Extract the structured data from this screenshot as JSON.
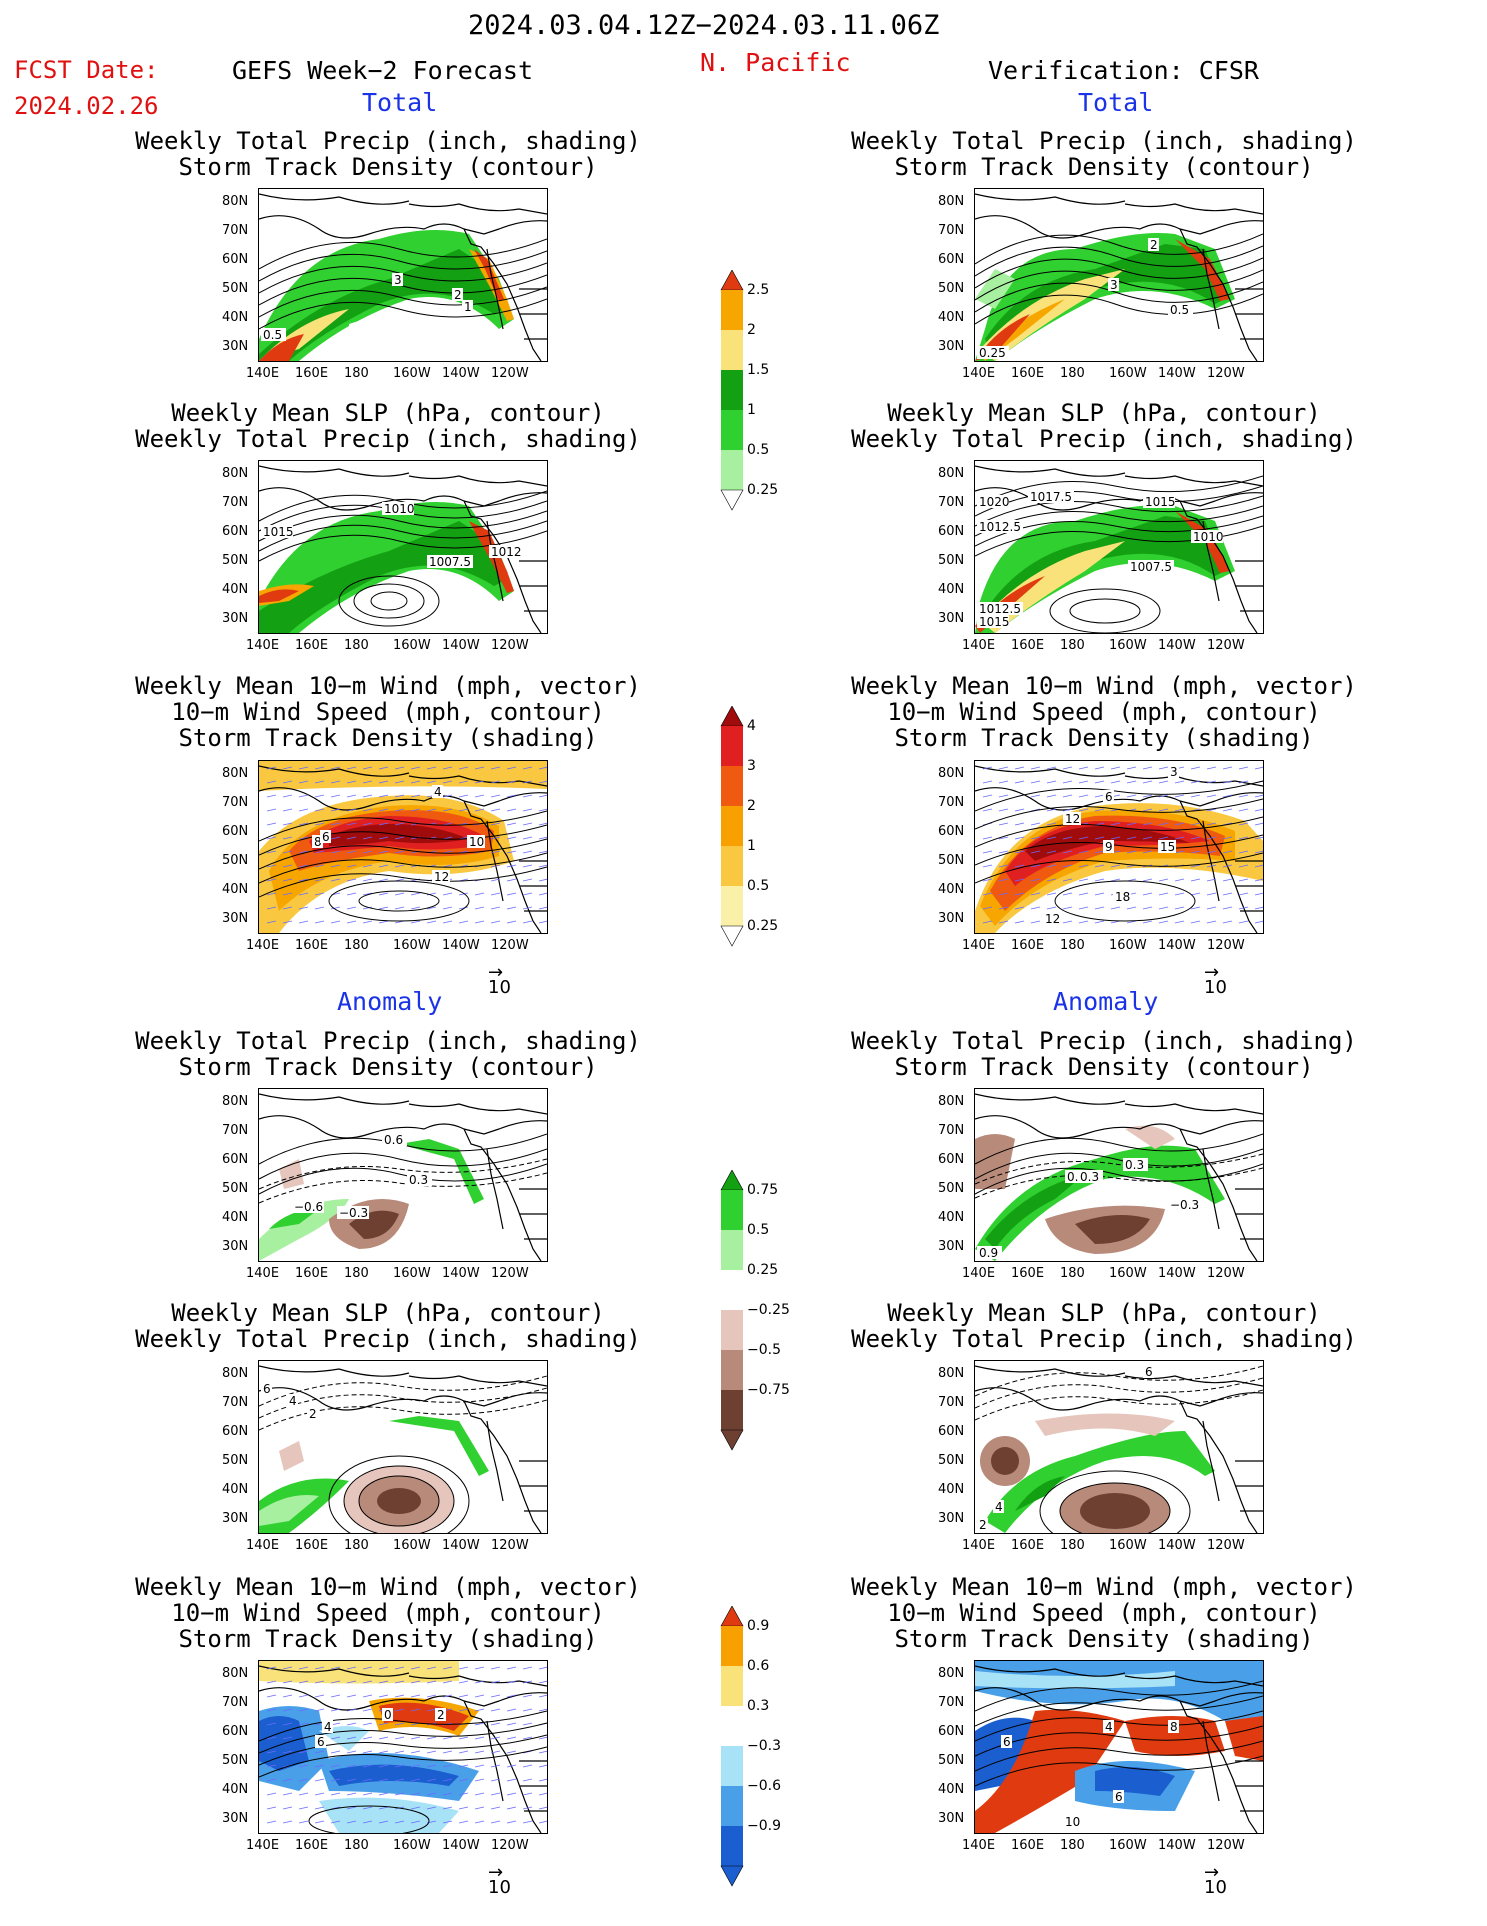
{
  "header": {
    "date_range": "2024.03.04.12Z−2024.03.11.06Z",
    "fcst_label": "FCST Date:",
    "fcst_date": "2024.02.26",
    "left_model": "GEFS Week−2 Forecast",
    "region": "N. Pacific",
    "right_model": "Verification: CFSR",
    "total_label": "Total",
    "anomaly_label": "Anomaly"
  },
  "titles": {
    "precip_track": [
      "Weekly Total Precip (inch, shading)",
      "Storm Track Density (contour)"
    ],
    "slp_precip": [
      "Weekly Mean SLP (hPa, contour)",
      "Weekly Total Precip (inch, shading)"
    ],
    "wind_track": [
      "Weekly Mean 10−m Wind (mph, vector)",
      "10−m Wind Speed (mph, contour)",
      "Storm Track Density (shading)"
    ]
  },
  "axes": {
    "lat_labels": [
      "80N",
      "70N",
      "60N",
      "50N",
      "40N",
      "30N"
    ],
    "lon_labels": [
      "140E",
      "160E",
      "180",
      "160W",
      "140W",
      "120W"
    ],
    "vector_ref": "10"
  },
  "colorbars": {
    "precip_total": {
      "labels": [
        "2.5",
        "2",
        "1.5",
        "1",
        "0.5",
        "0.25"
      ],
      "colors": [
        "#e03a10",
        "#f7a600",
        "#f9e27a",
        "#13a113",
        "#2fd02f",
        "#a6f0a0"
      ]
    },
    "track_total": {
      "labels": [
        "4",
        "3",
        "2",
        "1",
        "0.5",
        "0.25"
      ],
      "colors": [
        "#a00c0c",
        "#e02020",
        "#f05a10",
        "#f7a000",
        "#f9c840",
        "#fbf0a8"
      ]
    },
    "precip_anom": {
      "labels": [
        "0.75",
        "0.5",
        "0.25",
        "−0.25",
        "−0.5",
        "−0.75"
      ],
      "colors": [
        "#13a113",
        "#2fd02f",
        "#a6f0a0",
        "#ffffff",
        "#e6c6bc",
        "#b88a7a",
        "#6e4032"
      ]
    },
    "track_anom": {
      "labels": [
        "0.9",
        "0.6",
        "0.3",
        "−0.3",
        "−0.6",
        "−0.9"
      ],
      "colors": [
        "#e03a10",
        "#f7a000",
        "#f9e27a",
        "#ffffff",
        "#a8e2f7",
        "#4aa0e8",
        "#1a5ed0"
      ]
    }
  },
  "panel_labels": {
    "l1": [
      "3",
      "2",
      "1",
      "0.5"
    ],
    "r1": [
      "2",
      "3",
      "0.5",
      "0.25"
    ],
    "l2": [
      "1010",
      "1015",
      "1007.5",
      "1012"
    ],
    "r2": [
      "1020",
      "1017.5",
      "1015",
      "1012.5",
      "1007.5",
      "1010",
      "1012.5",
      "1015"
    ],
    "l3": [
      "4",
      "8",
      "6",
      "10",
      "12"
    ],
    "r3": [
      "3",
      "6",
      "12",
      "9",
      "15",
      "18",
      "12"
    ],
    "l4": [
      "0.6",
      "0.3",
      "−0.6",
      "−0.3"
    ],
    "r4": [
      "0.3",
      "0.6",
      "0.3",
      "−0.3",
      "0.9"
    ],
    "l5": [
      "6",
      "4",
      "2"
    ],
    "r5": [
      "6",
      "4",
      "2"
    ],
    "l6": [
      "0",
      "2",
      "4",
      "6"
    ],
    "r6": [
      "6",
      "4",
      "8",
      "10",
      "6"
    ]
  }
}
